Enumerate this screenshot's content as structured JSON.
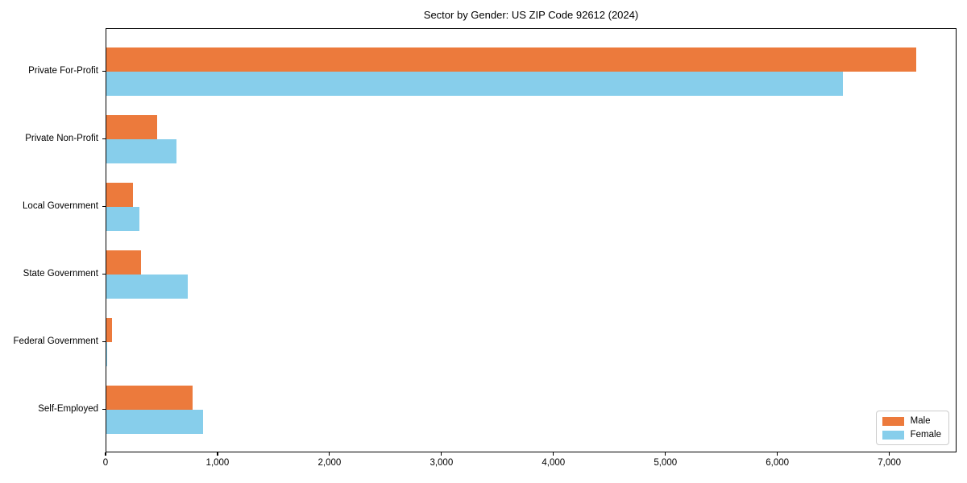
{
  "chart_data": {
    "type": "bar",
    "orientation": "horizontal",
    "title": "Sector by Gender: US ZIP Code 92612 (2024)",
    "categories": [
      "Private For-Profit",
      "Private Non-Profit",
      "Local Government",
      "State Government",
      "Federal Government",
      "Self-Employed"
    ],
    "series": [
      {
        "name": "Male",
        "color": "#EC7A3C",
        "values": [
          7230,
          450,
          240,
          310,
          50,
          770
        ]
      },
      {
        "name": "Female",
        "color": "#87CEEB",
        "values": [
          6580,
          625,
          295,
          730,
          10,
          865
        ]
      }
    ],
    "xlabel": "",
    "ylabel": "",
    "xlim": [
      0,
      7600
    ],
    "xticks": [
      0,
      1000,
      2000,
      3000,
      4000,
      5000,
      6000,
      7000
    ],
    "grid": false,
    "legend_position": "lower right",
    "axis_color": "#000000",
    "background_color": "#ffffff"
  }
}
